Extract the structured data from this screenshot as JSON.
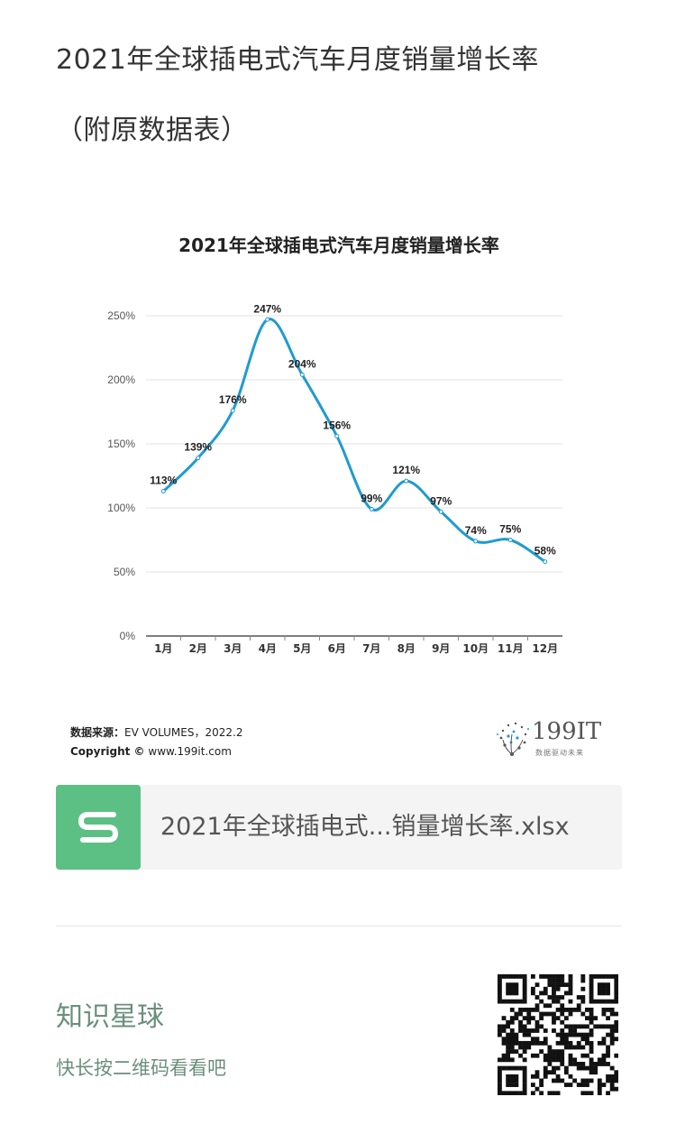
{
  "page": {
    "title_line1": "2021年全球插电式汽车月度销量增长率",
    "title_line2": "（附原数据表）"
  },
  "chart_data": {
    "type": "line",
    "title": "2021年全球插电式汽车月度销量增长率",
    "categories": [
      "1月",
      "2月",
      "3月",
      "4月",
      "5月",
      "6月",
      "7月",
      "8月",
      "9月",
      "10月",
      "11月",
      "12月"
    ],
    "series": [
      {
        "values": [
          113,
          139,
          176,
          247,
          204,
          156,
          99,
          121,
          97,
          74,
          75,
          58
        ]
      }
    ],
    "data_labels": [
      "113%",
      "139%",
      "176%",
      "247%",
      "204%",
      "156%",
      "99%",
      "121%",
      "97%",
      "74%",
      "75%",
      "58%"
    ],
    "y_ticks": [
      0,
      50,
      100,
      150,
      200,
      250
    ],
    "y_tick_labels": [
      "0%",
      "50%",
      "100%",
      "150%",
      "200%",
      "250%"
    ],
    "ylim": [
      0,
      250
    ],
    "grid": true,
    "line_color": "#1f9bd1"
  },
  "source": {
    "label": "数据来源：",
    "value": "EV VOLUMES，2022.2",
    "copyright_label": "Copyright ©",
    "copyright_value": "www.199it.com"
  },
  "brand": {
    "name": "199IT",
    "tagline": "数据驱动未来"
  },
  "file": {
    "icon": "spreadsheet-s-icon",
    "name": "2021年全球插电式...销量增长率.xlsx",
    "icon_color": "#5cc085"
  },
  "footer": {
    "title": "知识星球",
    "subtitle": "快长按二维码看看吧"
  }
}
